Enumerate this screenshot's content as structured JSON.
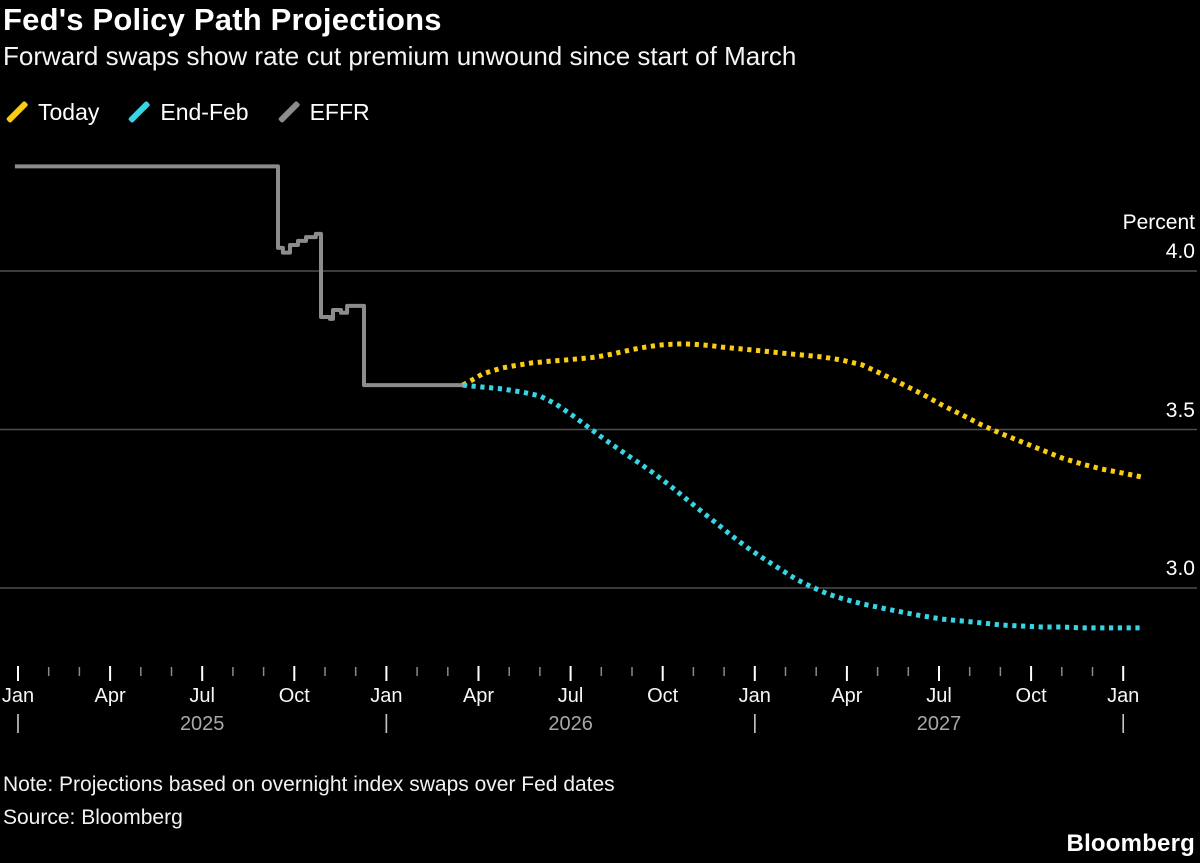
{
  "title": "Fed's Policy Path Projections",
  "subtitle": "Forward swaps show rate cut premium unwound since start of March",
  "legend": {
    "items": [
      {
        "label": "Today",
        "color": "#F9CC16"
      },
      {
        "label": "End-Feb",
        "color": "#38D4E4"
      },
      {
        "label": "EFFR",
        "color": "#8C8C8C"
      }
    ]
  },
  "notes": {
    "note": "Note: Projections based on overnight index swaps over Fed dates",
    "source": "Source: Bloomberg"
  },
  "brand": "Bloomberg",
  "colors": {
    "background": "#000000",
    "gridline": "#4F4F4F",
    "major_tick": "#FFFFFF",
    "minor_tick": "#8A8A8A"
  },
  "chart_data": {
    "type": "line",
    "title": "Fed's Policy Path Projections",
    "xlabel": "",
    "ylabel": "Percent",
    "y_axis": {
      "title": "Percent",
      "tick_labels": [
        "4.0",
        "3.5",
        "3.0"
      ],
      "tick_values": [
        4.0,
        3.5,
        3.0
      ],
      "ylim": [
        2.78,
        4.42
      ],
      "gridlines": true,
      "side": "right"
    },
    "x_axis": {
      "unit": "months since Jan 2025",
      "xlim_months": [
        -0.6,
        38.4
      ],
      "minor_tick_every_month": true,
      "quarter_tick_months": [
        0,
        3,
        6,
        9,
        12,
        15,
        18,
        21,
        24,
        27,
        30,
        33,
        36
      ],
      "quarter_tick_labels": [
        "Jan",
        "Apr",
        "Jul",
        "Oct",
        "Jan",
        "Apr",
        "Jul",
        "Oct",
        "Jan",
        "Apr",
        "Jul",
        "Oct",
        "Jan"
      ],
      "year_labels": [
        {
          "label": "2025",
          "month": 6
        },
        {
          "label": "2026",
          "month": 18
        },
        {
          "label": "2027",
          "month": 30
        }
      ],
      "year_marker_months": [
        0,
        12,
        24,
        36
      ]
    },
    "series": [
      {
        "name": "EFFR",
        "color": "#8C8C8C",
        "style": "solid-step",
        "points": [
          [
            -0.1,
            4.33
          ],
          [
            8.47,
            4.33
          ],
          [
            8.47,
            4.073
          ],
          [
            8.63,
            4.073
          ],
          [
            8.63,
            4.058
          ],
          [
            8.86,
            4.058
          ],
          [
            8.86,
            4.082
          ],
          [
            9.12,
            4.082
          ],
          [
            9.12,
            4.095
          ],
          [
            9.38,
            4.095
          ],
          [
            9.38,
            4.107
          ],
          [
            9.7,
            4.107
          ],
          [
            9.7,
            4.117
          ],
          [
            9.87,
            4.117
          ],
          [
            9.87,
            3.855
          ],
          [
            10.16,
            3.855
          ],
          [
            10.16,
            3.849
          ],
          [
            10.26,
            3.849
          ],
          [
            10.26,
            3.877
          ],
          [
            10.52,
            3.877
          ],
          [
            10.52,
            3.868
          ],
          [
            10.72,
            3.868
          ],
          [
            10.72,
            3.89
          ],
          [
            11.27,
            3.89
          ],
          [
            11.27,
            3.64
          ],
          [
            14.6,
            3.64
          ]
        ]
      },
      {
        "name": "Today",
        "color": "#F9CC16",
        "style": "dotted",
        "points": [
          [
            14.49,
            3.64
          ],
          [
            14.79,
            3.656
          ],
          [
            15.11,
            3.674
          ],
          [
            15.44,
            3.685
          ],
          [
            15.77,
            3.694
          ],
          [
            16.09,
            3.7
          ],
          [
            16.42,
            3.705
          ],
          [
            16.74,
            3.71
          ],
          [
            17.07,
            3.713
          ],
          [
            17.39,
            3.716
          ],
          [
            17.72,
            3.718
          ],
          [
            18.04,
            3.721
          ],
          [
            18.37,
            3.724
          ],
          [
            18.7,
            3.727
          ],
          [
            19.02,
            3.732
          ],
          [
            19.35,
            3.738
          ],
          [
            19.67,
            3.745
          ],
          [
            20.0,
            3.752
          ],
          [
            20.33,
            3.758
          ],
          [
            20.65,
            3.763
          ],
          [
            20.98,
            3.767
          ],
          [
            21.3,
            3.769
          ],
          [
            21.63,
            3.77
          ],
          [
            21.96,
            3.769
          ],
          [
            22.28,
            3.767
          ],
          [
            22.61,
            3.764
          ],
          [
            22.93,
            3.76
          ],
          [
            23.58,
            3.754
          ],
          [
            24.23,
            3.748
          ],
          [
            24.89,
            3.741
          ],
          [
            25.54,
            3.735
          ],
          [
            26.19,
            3.729
          ],
          [
            26.84,
            3.719
          ],
          [
            27.49,
            3.704
          ],
          [
            28.14,
            3.675
          ],
          [
            28.79,
            3.644
          ],
          [
            29.45,
            3.612
          ],
          [
            30.1,
            3.577
          ],
          [
            30.75,
            3.546
          ],
          [
            31.4,
            3.514
          ],
          [
            32.05,
            3.486
          ],
          [
            32.7,
            3.461
          ],
          [
            33.36,
            3.435
          ],
          [
            34.01,
            3.41
          ],
          [
            34.66,
            3.391
          ],
          [
            35.31,
            3.375
          ],
          [
            35.96,
            3.363
          ],
          [
            36.61,
            3.35
          ]
        ]
      },
      {
        "name": "End-Feb",
        "color": "#38D4E4",
        "style": "dotted",
        "points": [
          [
            14.49,
            3.64
          ],
          [
            15.11,
            3.634
          ],
          [
            15.77,
            3.628
          ],
          [
            16.42,
            3.618
          ],
          [
            17.0,
            3.606
          ],
          [
            17.52,
            3.58
          ],
          [
            18.04,
            3.546
          ],
          [
            18.57,
            3.508
          ],
          [
            19.09,
            3.47
          ],
          [
            19.61,
            3.435
          ],
          [
            20.13,
            3.401
          ],
          [
            20.65,
            3.366
          ],
          [
            21.17,
            3.328
          ],
          [
            21.69,
            3.287
          ],
          [
            22.21,
            3.246
          ],
          [
            22.74,
            3.205
          ],
          [
            23.26,
            3.164
          ],
          [
            23.78,
            3.126
          ],
          [
            24.3,
            3.092
          ],
          [
            24.82,
            3.06
          ],
          [
            25.34,
            3.028
          ],
          [
            25.86,
            3.003
          ],
          [
            26.38,
            2.981
          ],
          [
            26.91,
            2.965
          ],
          [
            27.49,
            2.95
          ],
          [
            28.14,
            2.937
          ],
          [
            28.79,
            2.924
          ],
          [
            29.45,
            2.912
          ],
          [
            30.1,
            2.902
          ],
          [
            30.75,
            2.896
          ],
          [
            31.4,
            2.89
          ],
          [
            32.05,
            2.883
          ],
          [
            32.7,
            2.88
          ],
          [
            33.36,
            2.877
          ],
          [
            34.01,
            2.877
          ],
          [
            34.66,
            2.874
          ],
          [
            35.31,
            2.874
          ],
          [
            35.96,
            2.874
          ],
          [
            36.61,
            2.874
          ]
        ]
      }
    ]
  },
  "y_label_positions_note": ""
}
